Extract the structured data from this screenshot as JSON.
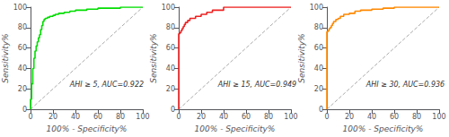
{
  "chart_data": [
    {
      "type": "line",
      "xlabel": "100% - Specificity%",
      "ylabel": "Sensitivity%",
      "annotation": "AHI ≥ 5, AUC=0.922",
      "xlim": [
        0,
        100
      ],
      "ylim": [
        0,
        100
      ],
      "xticks": [
        0,
        20,
        40,
        60,
        80,
        100
      ],
      "yticks": [
        0,
        20,
        40,
        60,
        80,
        100
      ],
      "grid": false,
      "series": [
        {
          "type": "line",
          "color": "#AAAAAA",
          "line_style": "dashed",
          "x": [
            0,
            100
          ],
          "values": [
            0,
            100
          ]
        },
        {
          "type": "step",
          "color": "#00DD00",
          "line_style": "solid",
          "x": [
            0,
            0,
            1,
            2,
            3,
            4,
            5,
            6,
            7,
            8,
            9,
            10,
            11,
            12,
            13,
            15,
            17,
            20,
            22,
            25,
            30,
            35,
            40,
            50,
            60,
            70,
            80,
            90,
            100
          ],
          "values": [
            0,
            10,
            25,
            40,
            50,
            57,
            62,
            66,
            70,
            73,
            78,
            82,
            86,
            88,
            89,
            90,
            91,
            92,
            93,
            94,
            95,
            96,
            97,
            98,
            99,
            99,
            100,
            100,
            100
          ]
        }
      ]
    },
    {
      "type": "line",
      "xlabel": "100% - Specificity%",
      "ylabel": "Sensitivity%",
      "annotation": "AHI ≥ 15, AUC=0.949",
      "xlim": [
        0,
        100
      ],
      "ylim": [
        0,
        100
      ],
      "xticks": [
        0,
        20,
        40,
        60,
        80,
        100
      ],
      "yticks": [
        0,
        20,
        40,
        60,
        80,
        100
      ],
      "grid": false,
      "series": [
        {
          "type": "line",
          "color": "#AAAAAA",
          "line_style": "dashed",
          "x": [
            0,
            100
          ],
          "values": [
            0,
            100
          ]
        },
        {
          "type": "step",
          "color": "#EE2222",
          "line_style": "solid",
          "x": [
            0,
            0,
            1,
            2,
            3,
            4,
            5,
            6,
            8,
            10,
            15,
            20,
            25,
            30,
            40,
            50,
            60,
            70,
            80,
            90,
            100
          ],
          "values": [
            0,
            74,
            75,
            77,
            79,
            81,
            83,
            85,
            87,
            89,
            91,
            93,
            95,
            97,
            100,
            100,
            100,
            100,
            100,
            100,
            100
          ]
        }
      ]
    },
    {
      "type": "line",
      "xlabel": "100% - Specificity%",
      "ylabel": "Sensitivity%",
      "annotation": "AHI ≥ 30, AUC=0.936",
      "xlim": [
        0,
        100
      ],
      "ylim": [
        0,
        100
      ],
      "xticks": [
        0,
        20,
        40,
        60,
        80,
        100
      ],
      "yticks": [
        0,
        20,
        40,
        60,
        80,
        100
      ],
      "grid": false,
      "series": [
        {
          "type": "line",
          "color": "#AAAAAA",
          "line_style": "dashed",
          "x": [
            0,
            100
          ],
          "values": [
            0,
            100
          ]
        },
        {
          "type": "step",
          "color": "#FF8800",
          "line_style": "solid",
          "x": [
            0,
            0,
            1,
            2,
            3,
            4,
            5,
            6,
            8,
            10,
            12,
            15,
            20,
            25,
            30,
            40,
            50,
            60,
            70,
            80,
            90,
            100
          ],
          "values": [
            0,
            76,
            77,
            79,
            80,
            82,
            84,
            86,
            88,
            89,
            91,
            93,
            94,
            96,
            97,
            98,
            99,
            100,
            100,
            100,
            100,
            100
          ]
        }
      ]
    }
  ]
}
